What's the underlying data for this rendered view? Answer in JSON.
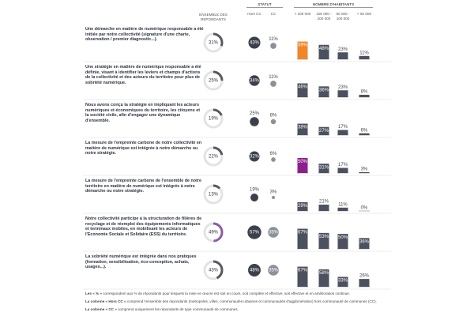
{
  "header": {
    "ensemble": "ENSEMBLE DES RÉPONDANTS",
    "statut": "STATUT",
    "hors_cc": "Hors CC",
    "cc": "CC",
    "habitants": "NOMBRE D'HABITANTS",
    "bands": [
      "> 200 000",
      "100 000 - 200 000",
      "50 000 - 100 000",
      "< 50 000"
    ]
  },
  "rows": [
    {
      "label": "Une démarche en matière de numérique responsable a été initiée par notre collectivité (signature d'une charte, observation / premier diagnostic...).",
      "values": [
        31,
        43,
        11,
        59,
        48,
        23,
        11
      ],
      "value_labels": [
        "31%",
        "43%",
        "11%",
        "59%",
        "48%",
        "23%",
        "11%"
      ],
      "ring_color": "#555a63",
      "bar_colors": [
        "#f0852a",
        "#4b515e",
        "#4b515e",
        "#4b515e"
      ]
    },
    {
      "label": "Une stratégie en matière de numérique responsable a été définie, visant à identifier les leviers et champs d'actions de la collectivité et des acteurs du territoire pour plus de sobriété numérique.",
      "values": [
        25,
        34,
        11,
        46,
        36,
        23,
        8
      ],
      "value_labels": [
        "25%",
        "34%",
        "11%",
        "46%",
        "36%",
        "23%",
        "8%"
      ],
      "ring_color": "#555a63",
      "bar_colors": [
        "#4b515e",
        "#4b515e",
        "#4b515e",
        "#4b515e"
      ]
    },
    {
      "label": "Nous avons conçu la stratégie en impliquant les acteurs numériques et économiques du territoire, les citoyens et la société civile, afin d'engager une dynamique d'ensemble.",
      "values": [
        19,
        25,
        8,
        38,
        27,
        17,
        6
      ],
      "value_labels": [
        "19%",
        "25%",
        "8%",
        "38%",
        "27%",
        "17%",
        "6%"
      ],
      "ring_color": "#555a63",
      "bar_colors": [
        "#4b515e",
        "#4b515e",
        "#4b515e",
        "#4b515e"
      ]
    },
    {
      "label": "La mesure de l'empreinte carbone de notre collectivité en matière de numérique est intégrée à notre démarche ou notre stratégie.",
      "values": [
        22,
        32,
        6,
        50,
        31,
        17,
        3
      ],
      "value_labels": [
        "22%",
        "32%",
        "6%",
        "50%",
        "31%",
        "17%",
        "3%"
      ],
      "ring_color": "#555a63",
      "bar_colors": [
        "#8c1f8c",
        "#4b515e",
        "#4b515e",
        "#4b515e"
      ]
    },
    {
      "label": "La mesure de l'empreinte carbone de l'ensemble de notre territoire en matière de numérique est intégrée à notre démarche ou notre stratégie.",
      "values": [
        13,
        19,
        3,
        29,
        21,
        11,
        0
      ],
      "value_labels": [
        "13%",
        "19%",
        "3%",
        "29%",
        "21%",
        "11%",
        "0%"
      ],
      "ring_color": "#555a63",
      "bar_colors": [
        "#4b515e",
        "#4b515e",
        "#4b515e",
        "#4b515e"
      ]
    },
    {
      "label": "Notre collectivité participe à la structuration de filières de recyclage et de réemploi des équipements informatiques et terminaux mobiles, en mobilisant les acteurs de l'Economie Sociale et Solidaire (ESS) du territoire.",
      "values": [
        49,
        57,
        35,
        67,
        53,
        50,
        36
      ],
      "value_labels": [
        "49%",
        "57%",
        "35%",
        "67%",
        "53%",
        "50%",
        "36%"
      ],
      "ring_color": "#8a5fa3",
      "bar_colors": [
        "#4b515e",
        "#4b515e",
        "#4b515e",
        "#4b515e"
      ]
    },
    {
      "label": "La sobriété numérique est intégrée dans nos pratiques (formation, sensibilisation, éco-conception, achats, usages...).",
      "values": [
        43,
        48,
        35,
        67,
        58,
        33,
        26
      ],
      "value_labels": [
        "43%",
        "48%",
        "35%",
        "67%",
        "58%",
        "33%",
        "26%"
      ],
      "ring_color": "#555a63",
      "bar_colors": [
        "#4b515e",
        "#4b515e",
        "#4b515e",
        "#4b515e"
      ]
    }
  ],
  "notes": [
    {
      "lead": "Les « % »",
      "text": " correspondent aux % de répondants pour lesquels la mise en œuvre est soit en cours, soit complète et effective, soit effective et en amélioration continue."
    },
    {
      "lead": "La colonne « Hors CC »",
      "text": " comprend l'ensemble des répondants (métropoles, villes, communautés urbaines et communautés d'agglomération) hors communauté de communes (CC)."
    },
    {
      "lead": "La colonne « CC »",
      "text": " comprend uniquement les répondants de type communauté de communes."
    }
  ]
}
